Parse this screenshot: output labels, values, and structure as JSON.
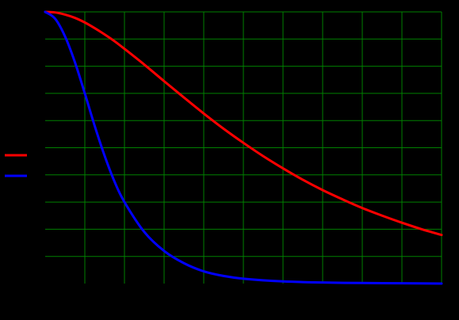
{
  "chart_data": {
    "type": "line",
    "title": "",
    "xlabel": "",
    "ylabel": "",
    "xlim": [
      0,
      10
    ],
    "ylim": [
      0,
      10
    ],
    "grid": true,
    "legend": "left",
    "series": [
      {
        "color": "#ff0000",
        "x": [
          0,
          0.25,
          0.5,
          0.75,
          1,
          1.25,
          1.5,
          1.75,
          2,
          2.5,
          3,
          3.5,
          4,
          4.5,
          5,
          5.5,
          6,
          6.5,
          7,
          7.5,
          8,
          8.5,
          9,
          9.5,
          10
        ],
        "y": [
          10,
          9.98,
          9.9,
          9.78,
          9.61,
          9.4,
          9.17,
          8.92,
          8.64,
          8.06,
          7.45,
          6.85,
          6.26,
          5.7,
          5.18,
          4.69,
          4.24,
          3.82,
          3.44,
          3.1,
          2.78,
          2.5,
          2.24,
          2.0,
          1.79
        ]
      },
      {
        "color": "#0000ff",
        "x": [
          0,
          0.25,
          0.5,
          0.75,
          1,
          1.25,
          1.5,
          1.75,
          2,
          2.5,
          3,
          3.5,
          4,
          4.5,
          5,
          6,
          7,
          8,
          9,
          10
        ],
        "y": [
          10,
          9.75,
          9.1,
          8.15,
          7.0,
          5.8,
          4.7,
          3.75,
          3.0,
          1.9,
          1.2,
          0.75,
          0.45,
          0.28,
          0.18,
          0.08,
          0.04,
          0.02,
          0.01,
          0.0
        ]
      }
    ]
  },
  "colors": {
    "background": "#000000",
    "grid": "#008000"
  }
}
